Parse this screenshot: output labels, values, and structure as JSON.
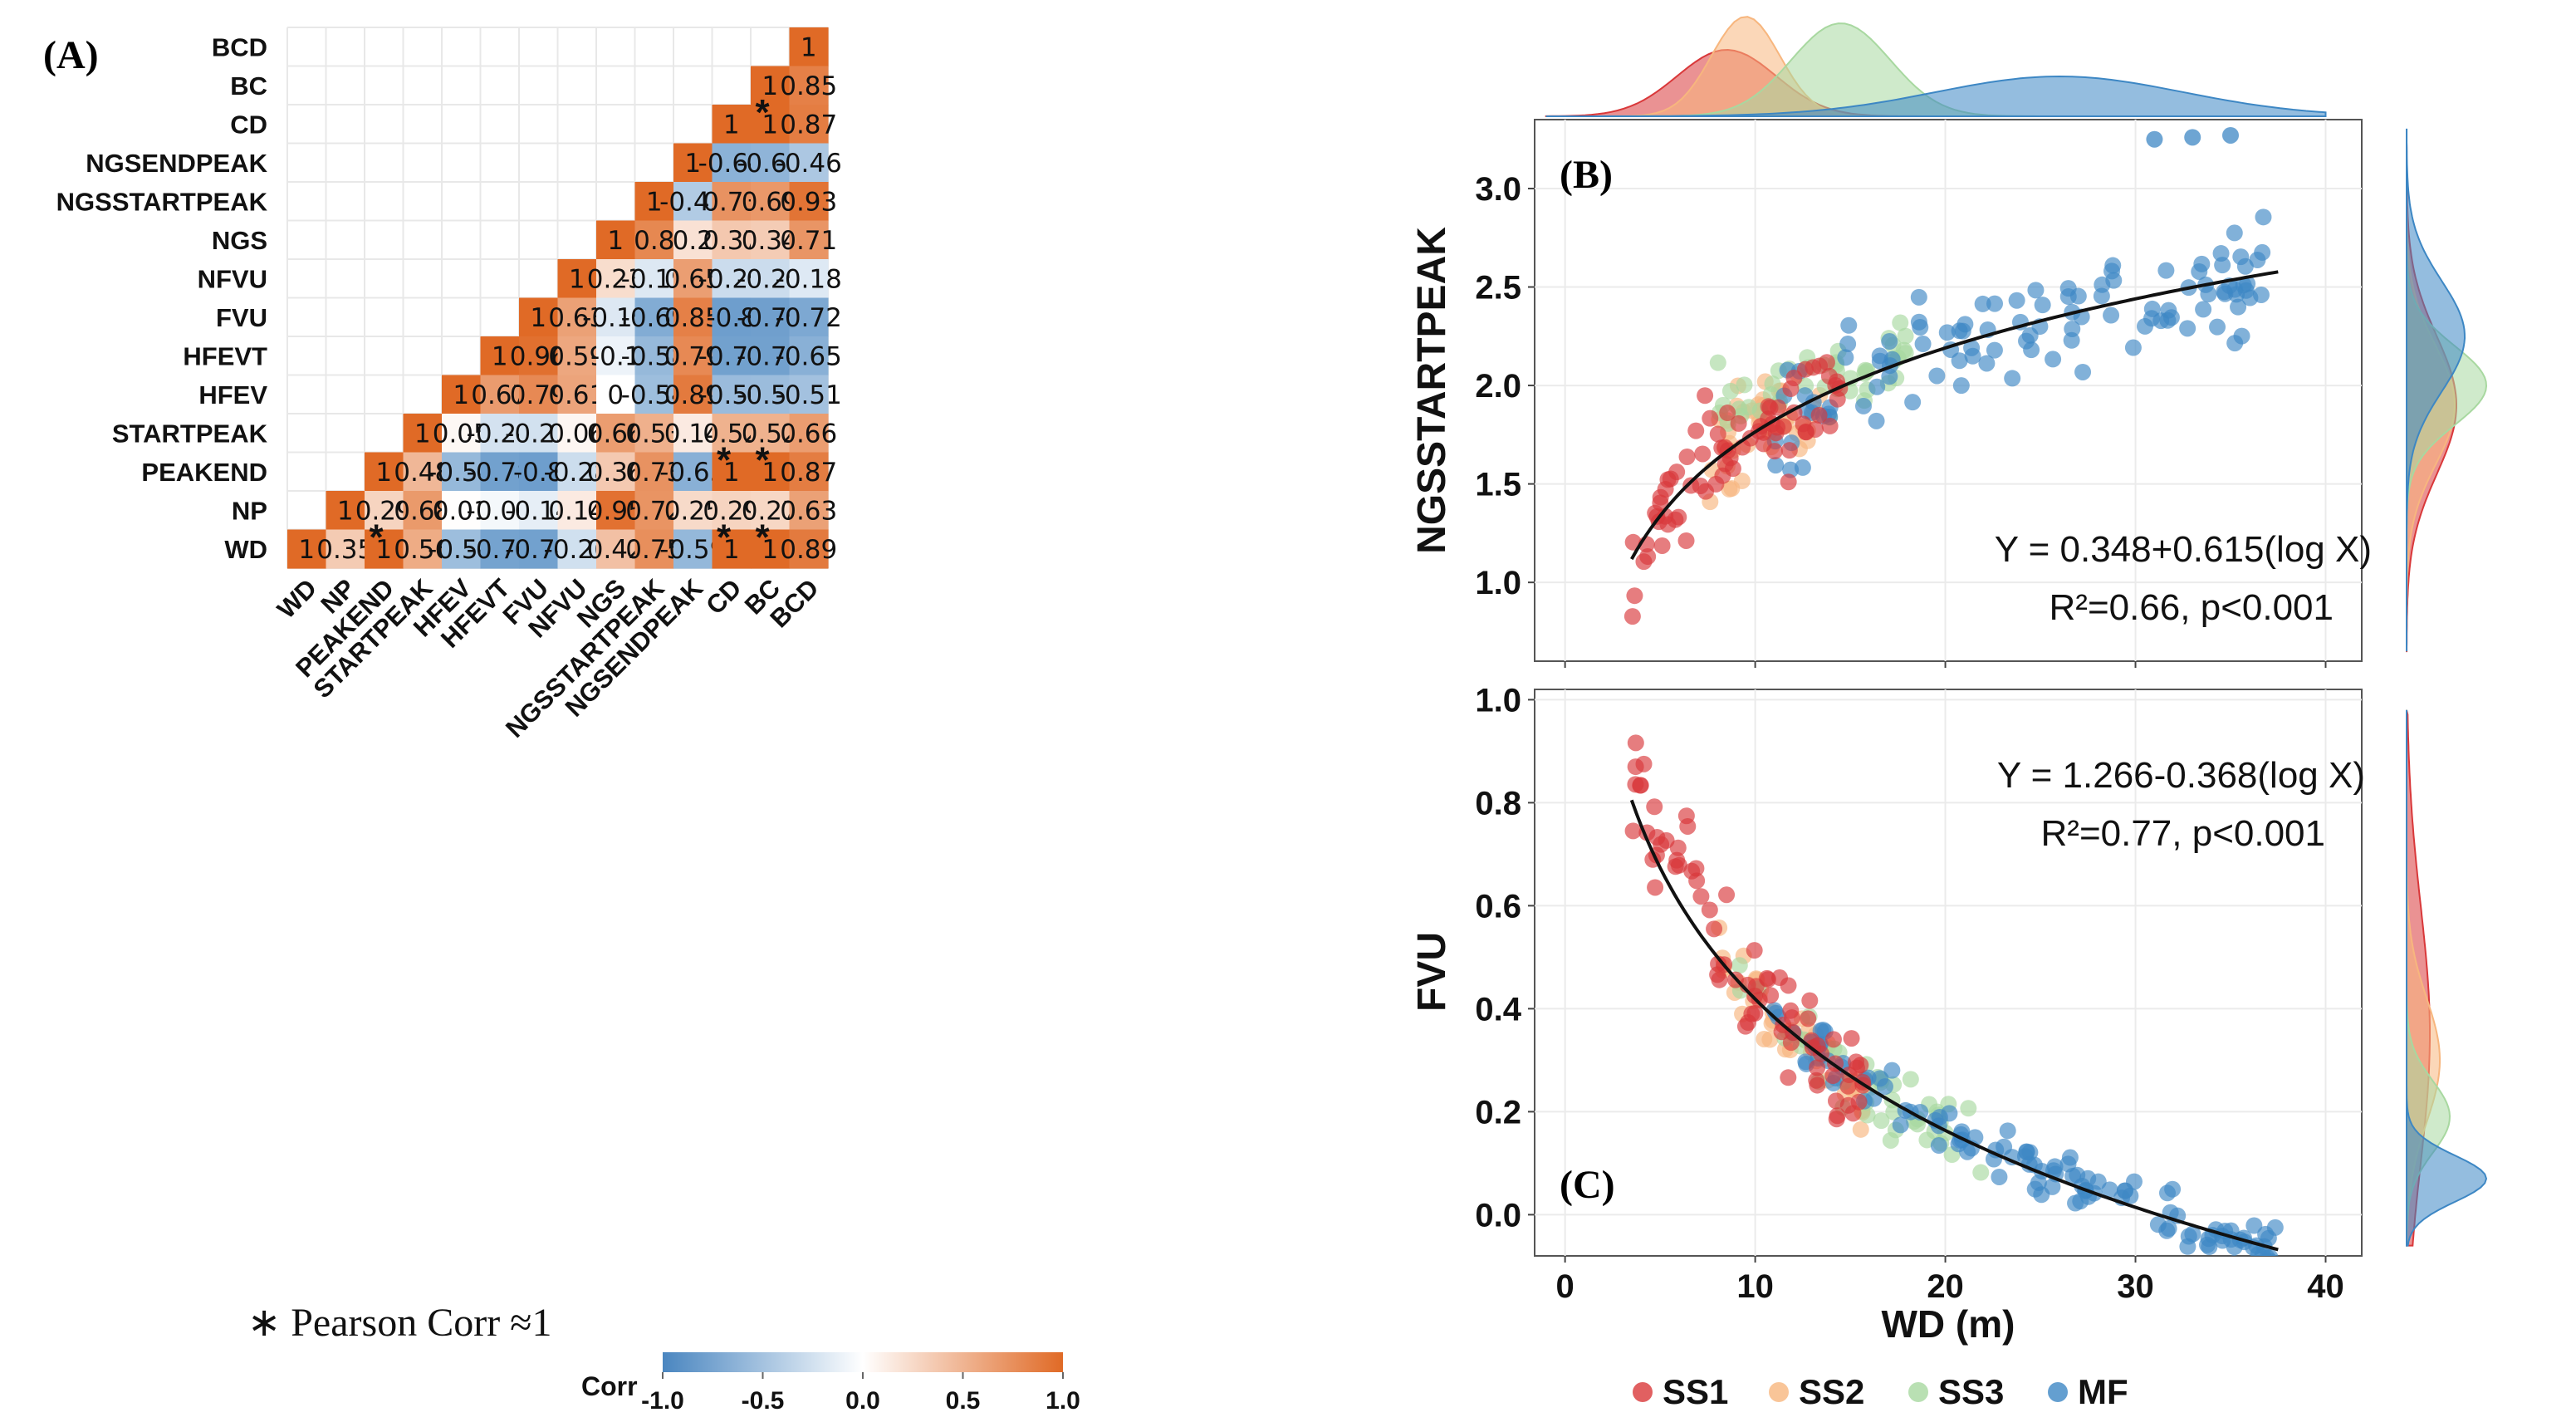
{
  "figure": {
    "panel_a_label": "(A)",
    "panel_b_label": "(B)",
    "panel_c_label": "(C)",
    "footnote": "∗ Pearson Corr ≈1",
    "colors": {
      "positive": "#e06a26",
      "negative": "#4a86c0",
      "neutral": "#ffffff"
    }
  },
  "chart_data": [
    {
      "type": "heatmap",
      "title": "",
      "variables": [
        "WD",
        "NP",
        "PEAKEND",
        "STARTPEAK",
        "HFEV",
        "HFEVT",
        "FVU",
        "NFVU",
        "NGS",
        "NGSSTARTPEAK",
        "NGSENDPEAK",
        "CD",
        "BC",
        "BCD"
      ],
      "layout": "lower-triangle, row WD at bottom, columns left to right",
      "rows": [
        {
          "label": "BCD",
          "values": [
            1
          ]
        },
        {
          "label": "BC",
          "values": [
            1,
            0.85
          ]
        },
        {
          "label": "CD",
          "values": [
            1,
            1,
            0.87
          ],
          "starred": [
            1
          ]
        },
        {
          "label": "NGSENDPEAK",
          "values": [
            1,
            -0.64,
            -0.62,
            -0.46
          ]
        },
        {
          "label": "NGSSTARTPEAK",
          "values": [
            1,
            -0.43,
            0.73,
            0.69,
            0.93
          ]
        },
        {
          "label": "NGS",
          "values": [
            1,
            0.8,
            0.2,
            0.37,
            0.34,
            0.71
          ]
        },
        {
          "label": "NFVU",
          "values": [
            1,
            0.23,
            -0.19,
            0.65,
            -0.29,
            -0.29,
            -0.18
          ]
        },
        {
          "label": "FVU",
          "values": [
            1,
            0.63,
            -0.19,
            -0.69,
            0.85,
            -0.8,
            -0.79,
            -0.72
          ]
        },
        {
          "label": "HFEVT",
          "values": [
            1,
            0.96,
            0.59,
            -0.1,
            -0.58,
            0.79,
            -0.78,
            -0.78,
            -0.65
          ]
        },
        {
          "label": "HFEV",
          "values": [
            1,
            0.67,
            0.79,
            0.61,
            0,
            -0.54,
            0.89,
            -0.56,
            -0.55,
            -0.51
          ]
        },
        {
          "label": "STARTPEAK",
          "values": [
            1,
            0.05,
            -0.24,
            -0.25,
            0.06,
            0.66,
            0.53,
            0.14,
            0.52,
            0.52,
            0.66
          ]
        },
        {
          "label": "PEAKEND",
          "values": [
            1,
            0.48,
            -0.58,
            -0.78,
            -0.8,
            -0.28,
            0.36,
            0.73,
            -0.65,
            1,
            1,
            0.87
          ],
          "starred": [
            9,
            10
          ]
        },
        {
          "label": "NP",
          "values": [
            1,
            0.29,
            0.68,
            0.01,
            -0.06,
            -0.14,
            0.14,
            0.95,
            0.72,
            0.25,
            0.29,
            0.27,
            0.63
          ]
        },
        {
          "label": "WD",
          "values": [
            1,
            0.35,
            1,
            0.56,
            -0.54,
            -0.76,
            -0.78,
            -0.26,
            0.42,
            0.75,
            -0.59,
            1,
            1,
            0.89
          ],
          "starred": [
            2,
            11,
            12
          ]
        }
      ],
      "colorbar": {
        "title": "Corr",
        "ticks": [
          "-1.0",
          "-0.5",
          "0.0",
          "0.5",
          "1.0"
        ],
        "range": [
          -1,
          1
        ]
      }
    },
    {
      "type": "scatter",
      "panel": "B",
      "ylabel": "NGSSTARTPEAK",
      "xlim": [
        0,
        40
      ],
      "ylim": [
        0.6,
        3.35
      ],
      "yticks": [
        "1.0",
        "1.5",
        "2.0",
        "2.5",
        "3.0"
      ],
      "fit": {
        "intercept": 0.348,
        "slope": 0.615,
        "x_range": [
          3.5,
          37.5
        ]
      },
      "equation": "Y = 0.348+0.615(log X)",
      "stats": "R²=0.66,  p<0.001",
      "series": [
        {
          "name": "SS1",
          "x_range": [
            3.5,
            14.5
          ],
          "y_center": 1.75,
          "y_spread": 0.22
        },
        {
          "name": "SS2",
          "x_range": [
            7,
            13.5
          ],
          "y_center": 1.85,
          "y_spread": 0.2
        },
        {
          "name": "SS3",
          "x_range": [
            8,
            18
          ],
          "y_center": 2.0,
          "y_spread": 0.15
        },
        {
          "name": "MF",
          "x_range": [
            11,
            37.5
          ],
          "y_center": 2.2,
          "y_spread": 0.22,
          "outliers": [
            [
              31,
              3.25
            ],
            [
              33,
              3.26
            ],
            [
              35,
              3.27
            ]
          ]
        }
      ]
    },
    {
      "type": "scatter",
      "panel": "C",
      "ylabel": "FVU",
      "xlabel": "WD (m)",
      "xlim": [
        0,
        40
      ],
      "ylim": [
        -0.08,
        1.02
      ],
      "xticks": [
        "0",
        "10",
        "20",
        "30",
        "40"
      ],
      "yticks": [
        "0.0",
        "0.2",
        "0.4",
        "0.6",
        "0.8",
        "1.0"
      ],
      "fit": {
        "intercept": 1.266,
        "slope": -0.368,
        "x_range": [
          3.5,
          37.5
        ]
      },
      "equation": "Y = 1.266-0.368(log X)",
      "stats": "R²=0.77,  p<0.001",
      "series": [
        {
          "name": "SS1",
          "x_range": [
            3.5,
            16
          ],
          "y_spread": 0.08
        },
        {
          "name": "SS2",
          "x_range": [
            8,
            16
          ],
          "y_spread": 0.05
        },
        {
          "name": "SS3",
          "x_range": [
            9,
            22
          ],
          "y_spread": 0.05
        },
        {
          "name": "MF",
          "x_range": [
            11,
            37.5
          ],
          "y_spread": 0.035
        }
      ]
    }
  ],
  "legend": [
    {
      "name": "SS1",
      "color": "#d9383a"
    },
    {
      "name": "SS2",
      "color": "#f7b67e"
    },
    {
      "name": "SS3",
      "color": "#a8d8a0"
    },
    {
      "name": "MF",
      "color": "#3d87c4"
    }
  ]
}
